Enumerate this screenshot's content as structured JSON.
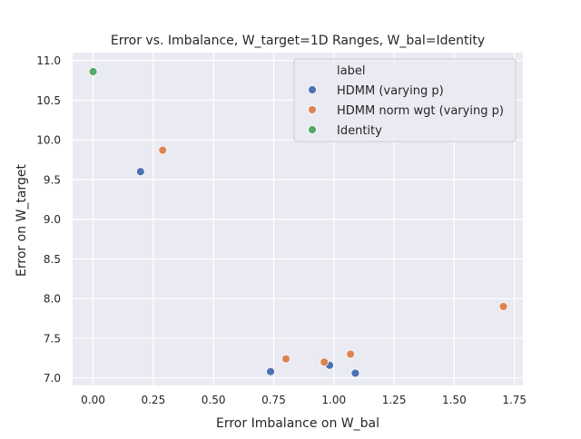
{
  "chart_data": {
    "type": "scatter",
    "title": "Error vs. Imbalance, W_target=1D Ranges, W_bal=Identity",
    "xlabel": "Error Imbalance on W_bal",
    "ylabel": "Error on W_target",
    "xlim": [
      -0.085,
      1.785
    ],
    "ylim": [
      6.905,
      11.1
    ],
    "xticks": [
      "0.00",
      "0.25",
      "0.50",
      "0.75",
      "1.00",
      "1.25",
      "1.50",
      "1.75"
    ],
    "yticks": [
      "7.0",
      "7.5",
      "8.0",
      "8.5",
      "9.0",
      "9.5",
      "10.0",
      "10.5",
      "11.0"
    ],
    "grid": true,
    "legend_title": "label",
    "legend_position": "top-right",
    "series": [
      {
        "name": "HDMM (varying p)",
        "color": "#4c72b0",
        "points": [
          [
            0.197,
            9.6
          ],
          [
            0.737,
            7.08
          ],
          [
            0.982,
            7.16
          ],
          [
            1.089,
            7.06
          ]
        ]
      },
      {
        "name": "HDMM norm wgt (varying p)",
        "color": "#dd8452",
        "points": [
          [
            0.289,
            9.87
          ],
          [
            0.801,
            7.24
          ],
          [
            0.96,
            7.2
          ],
          [
            1.069,
            7.3
          ],
          [
            1.704,
            7.9
          ]
        ]
      },
      {
        "name": "Identity",
        "color": "#55a868",
        "points": [
          [
            0.0,
            10.86
          ]
        ]
      }
    ]
  }
}
